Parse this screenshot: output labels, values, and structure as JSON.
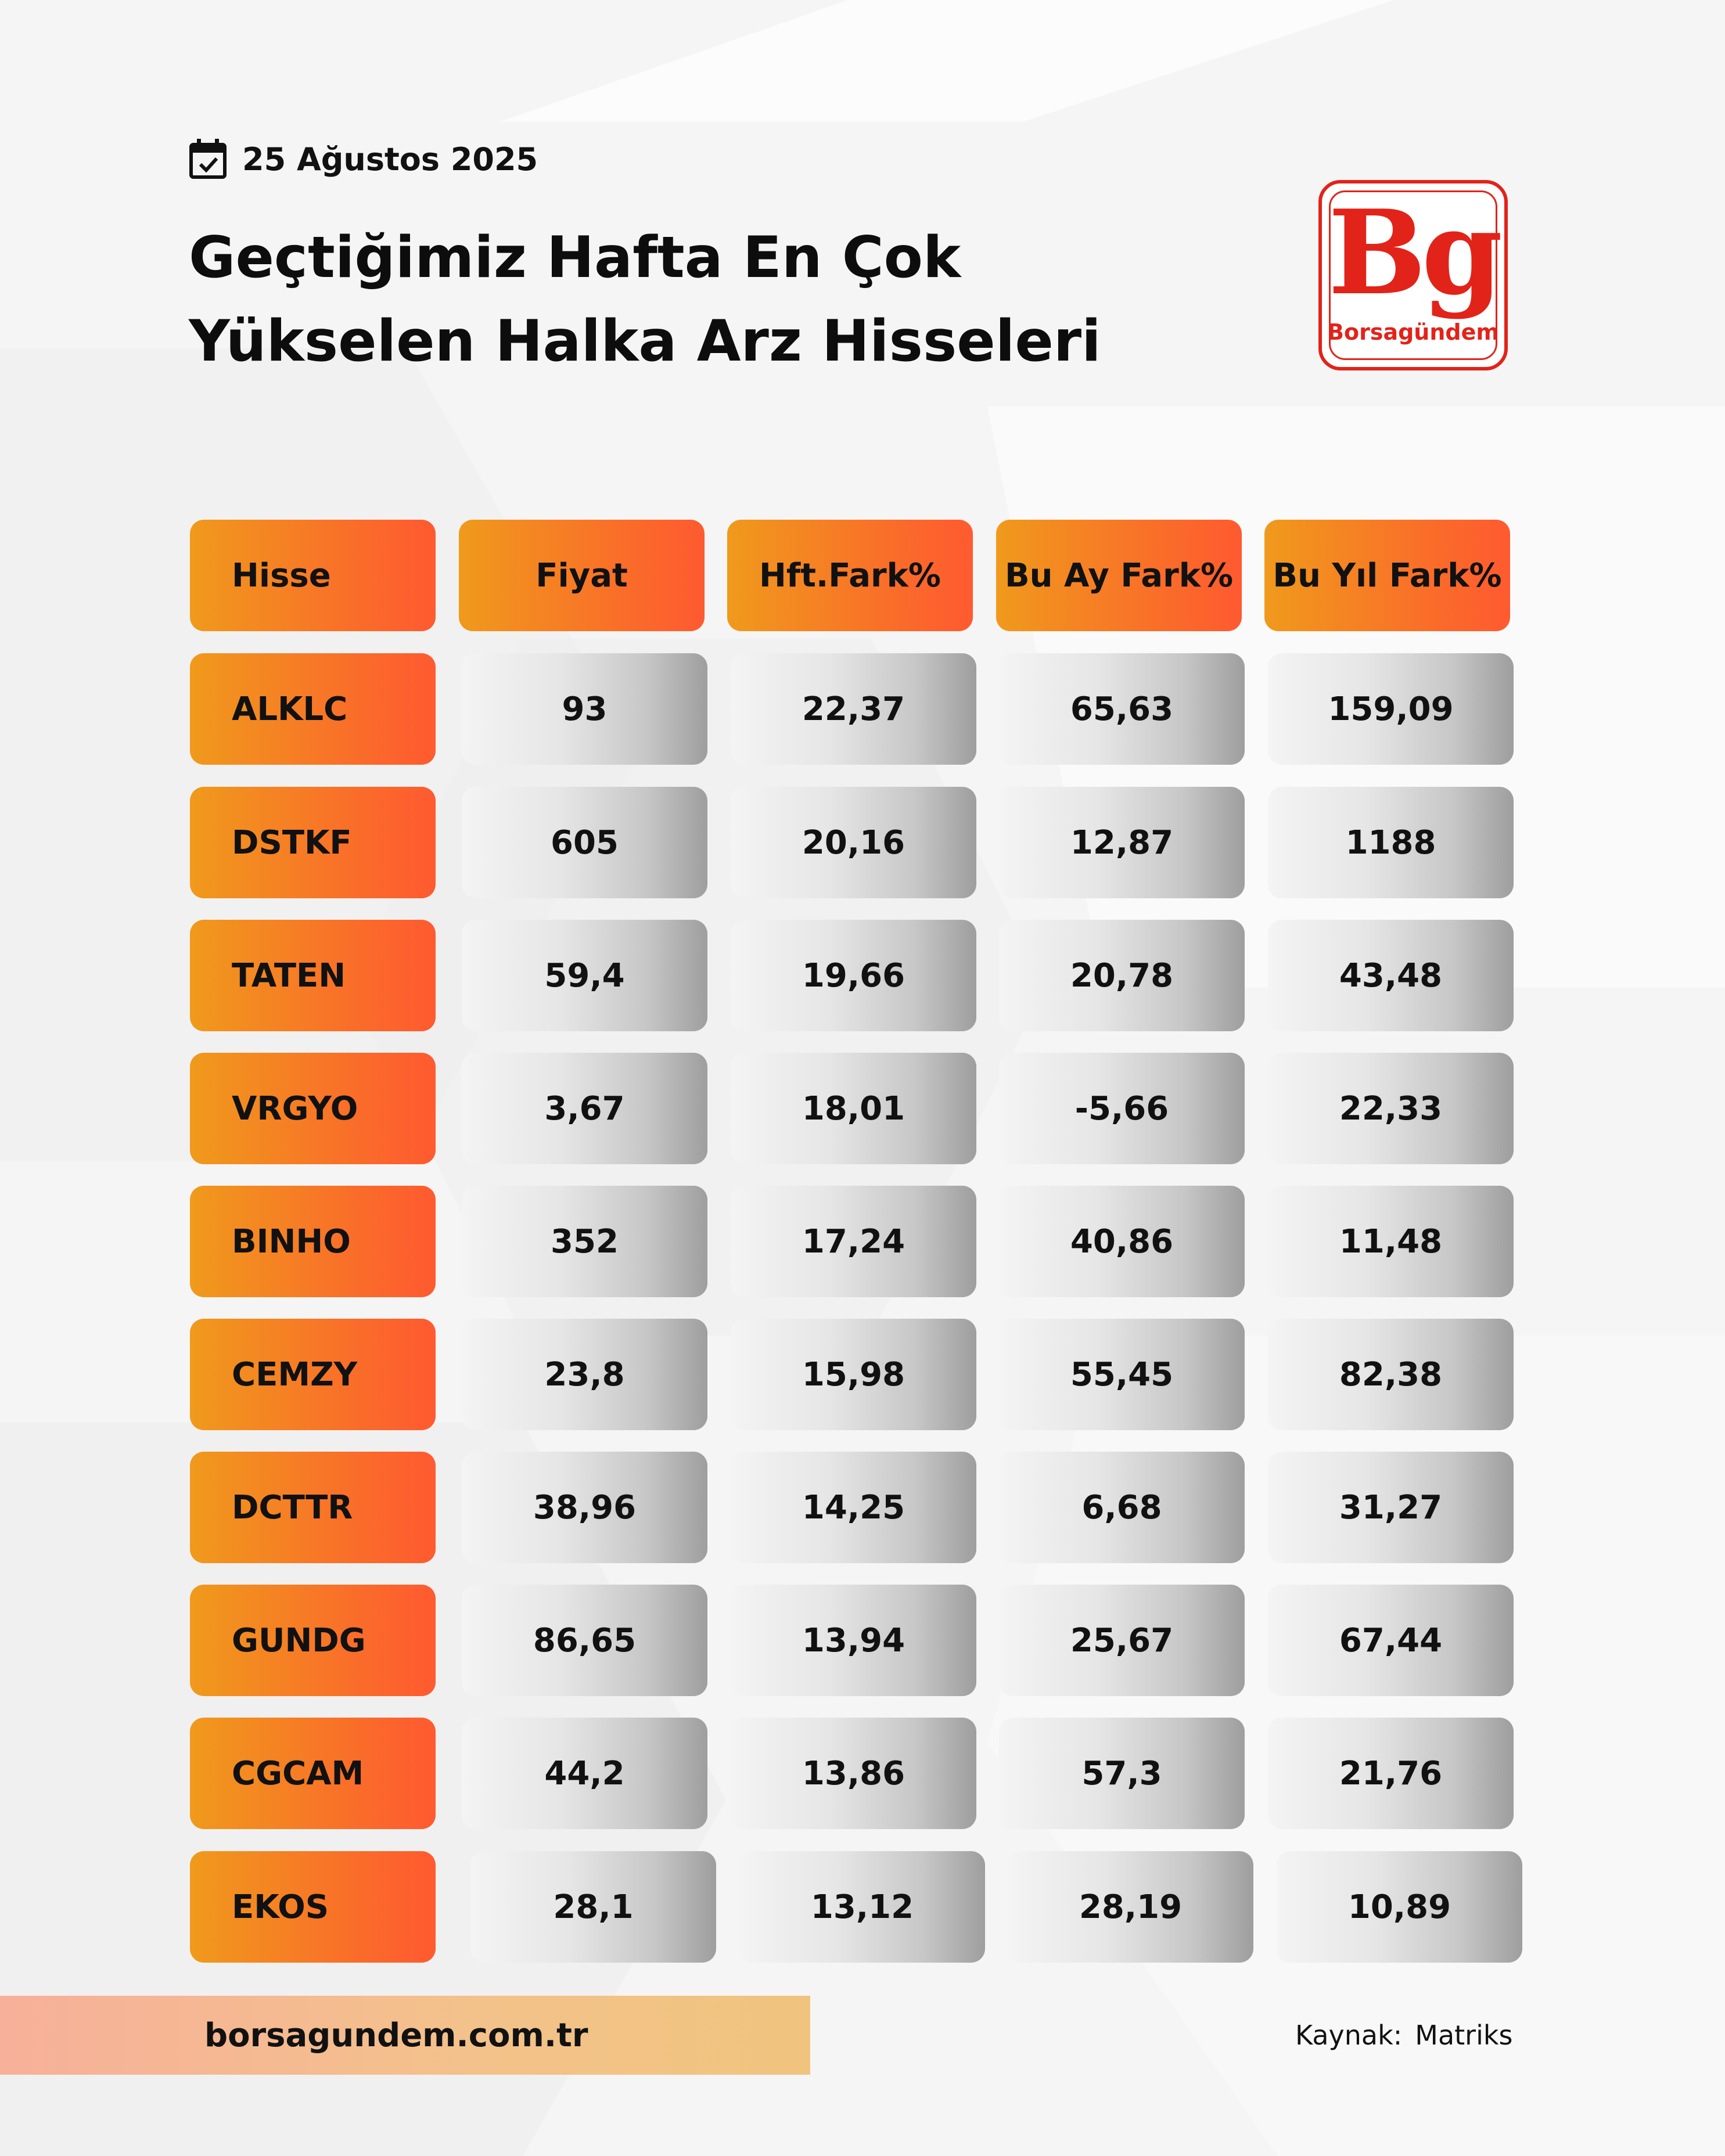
{
  "date": "25 Ağustos 2025",
  "title_lines": [
    "Geçtiğimiz Hafta En Çok",
    "Yükselen Halka Arz Hisseleri"
  ],
  "logo": {
    "mark": "Bg",
    "brand": "Borsagündem",
    "color": "#e2231a"
  },
  "table": {
    "headers": [
      "Hisse",
      "Fiyat",
      "Hft.Fark%",
      "Bu Ay Fark%",
      "Bu Yıl Fark%"
    ],
    "rows": [
      [
        "ALKLC",
        "93",
        "22,37",
        "65,63",
        "159,09"
      ],
      [
        "DSTKF",
        "605",
        "20,16",
        "12,87",
        "1188"
      ],
      [
        "TATEN",
        "59,4",
        "19,66",
        "20,78",
        "43,48"
      ],
      [
        "VRGYO",
        "3,67",
        "18,01",
        "-5,66",
        "22,33"
      ],
      [
        "BINHO",
        "352",
        "17,24",
        "40,86",
        "11,48"
      ],
      [
        "CEMZY",
        "23,8",
        "15,98",
        "55,45",
        "82,38"
      ],
      [
        "DCTTR",
        "38,96",
        "14,25",
        "6,68",
        "31,27"
      ],
      [
        "GUNDG",
        "86,65",
        "13,94",
        "25,67",
        "67,44"
      ],
      [
        "CGCAM",
        "44,2",
        "13,86",
        "57,3",
        "21,76"
      ],
      [
        "EKOS",
        "28,1",
        "13,12",
        "28,19",
        "10,89"
      ]
    ]
  },
  "footer": {
    "website": "borsagundem.com.tr",
    "source_label": "Kaynak:",
    "source_value": "Matriks"
  },
  "colors": {
    "accent_orange": "#f09a1c",
    "accent_red_orange": "#ff5a30",
    "cell_gray": "#9e9e9e"
  },
  "icons": {
    "date": "calendar-check-icon"
  }
}
